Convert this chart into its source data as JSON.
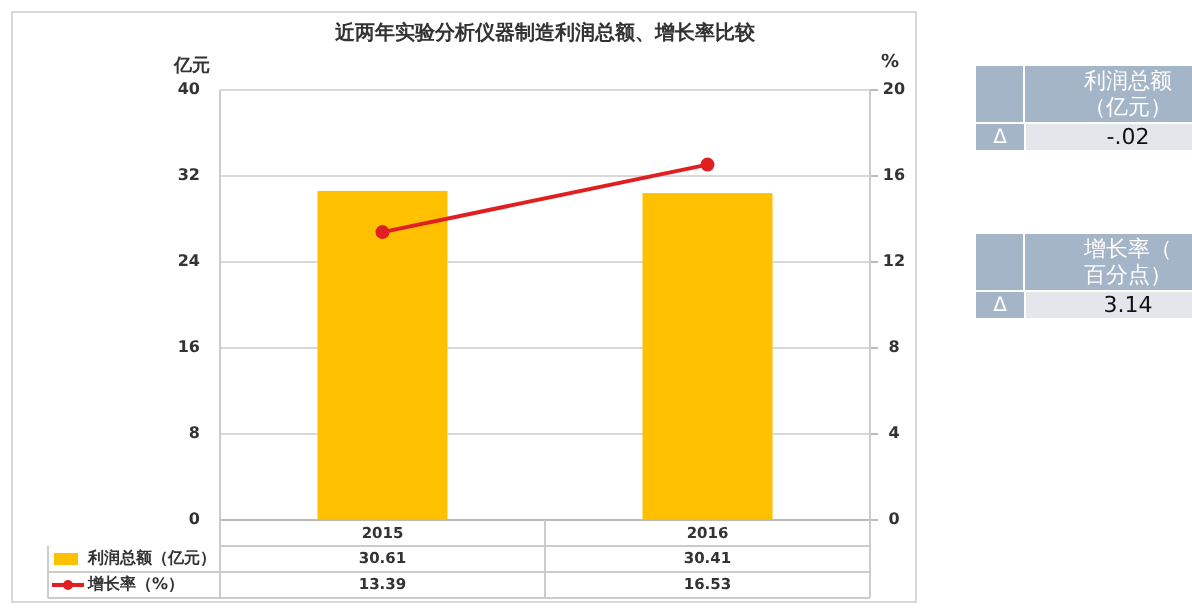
{
  "chart_data": {
    "type": "bar",
    "title": "近两年实验分析仪器制造利润总额、增长率比较",
    "ylabel": "亿元",
    "y2label": "%",
    "categories": [
      "2015",
      "2016"
    ],
    "series": [
      {
        "name": "利润总额（亿元）",
        "color": "#ffc000",
        "values": [
          30.61,
          30.41
        ]
      },
      {
        "name": "增长率（%）",
        "type": "line",
        "axis": "y2",
        "color": "#e02020",
        "marker": "circle",
        "values": [
          13.39,
          16.53
        ]
      }
    ],
    "ylim": [
      0,
      40
    ],
    "yticks": [
      0,
      8,
      16,
      24,
      32,
      40
    ],
    "y2lim": [
      0,
      20
    ],
    "y2ticks": [
      0,
      4,
      8,
      12,
      16,
      20
    ],
    "grid": "y",
    "legend": "bottom",
    "data_labels": true,
    "annotations": [
      "利润总额（亿元）",
      "Δ",
      "-.02",
      "增长率（百分点）",
      "Δ",
      "3.14"
    ]
  }
}
